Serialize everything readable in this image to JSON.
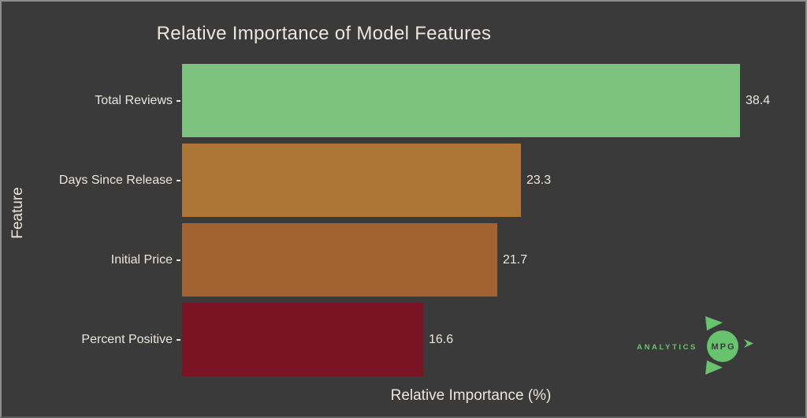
{
  "chart_data": {
    "type": "bar",
    "orientation": "horizontal",
    "title": "Relative Importance of Model Features",
    "xlabel": "Relative Importance (%)",
    "ylabel": "Feature",
    "categories": [
      "Total Reviews",
      "Days Since Release",
      "Initial Price",
      "Percent Positive"
    ],
    "values": [
      38.4,
      23.3,
      21.7,
      16.6
    ],
    "value_labels": [
      "38.4",
      "23.3",
      "21.7",
      "16.6"
    ],
    "bar_colors": [
      "#7cc17e",
      "#ad7536",
      "#a36232",
      "#7a1425"
    ],
    "xlim_estimate": [
      0,
      41
    ],
    "grid": false,
    "legend": "none",
    "background_color": "#3a3a3a",
    "text_color": "#ebe7e0"
  },
  "logo": {
    "analytics_label": "ANALYTICS",
    "mpg_label": "MPG",
    "green": "#68c36f"
  }
}
